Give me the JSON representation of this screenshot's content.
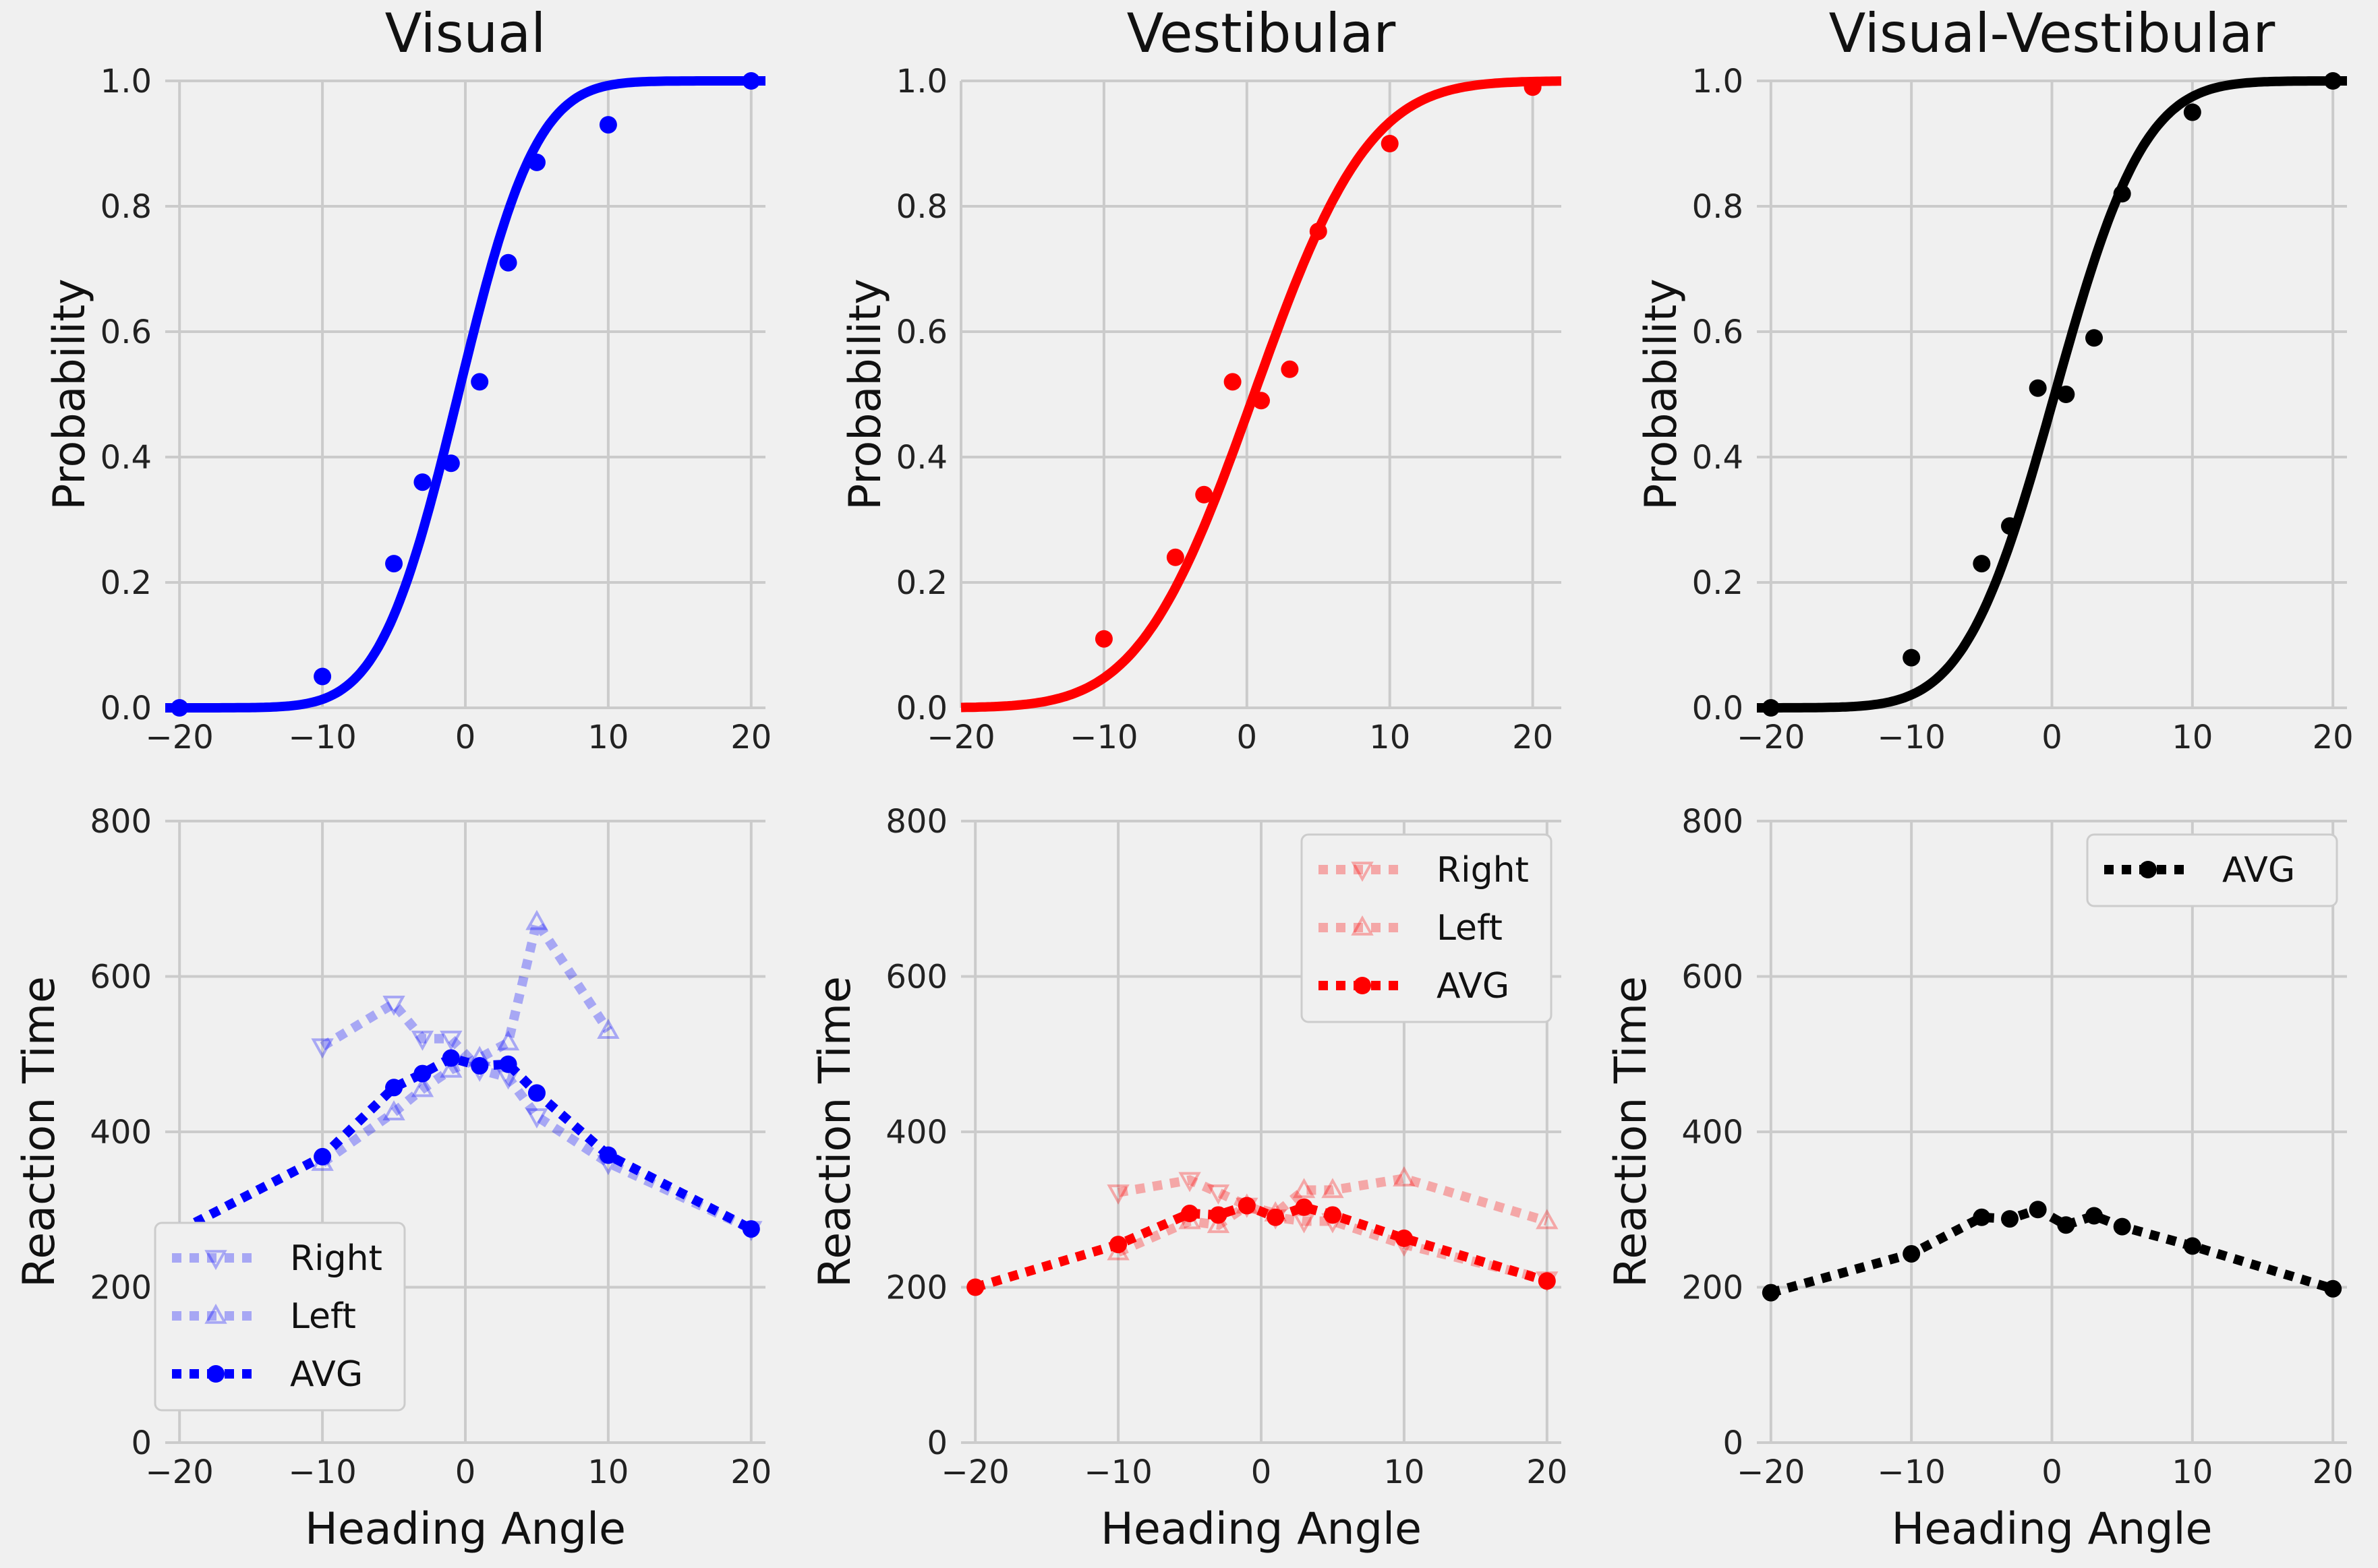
{
  "chart_data": [
    {
      "type": "scatter",
      "title": "Visual",
      "xlabel": "",
      "ylabel": "Probability",
      "xlim": [
        -21,
        21
      ],
      "ylim": [
        0,
        1.0
      ],
      "xticks": [
        -20,
        -10,
        0,
        10,
        20
      ],
      "yticks": [
        0.0,
        0.2,
        0.4,
        0.6,
        0.8,
        1.0
      ],
      "grid": true,
      "color": "#0000ff",
      "fit": {
        "mu": -0.5,
        "sigma": 4.3
      },
      "series": [
        {
          "x": [
            -20,
            -10,
            -5,
            -3,
            -1,
            1,
            3,
            5,
            10,
            20
          ],
          "y": [
            0.0,
            0.05,
            0.23,
            0.36,
            0.39,
            0.52,
            0.71,
            0.87,
            0.93,
            1.0
          ]
        }
      ]
    },
    {
      "type": "scatter",
      "title": "Vestibular",
      "xlabel": "",
      "ylabel": "Probability",
      "xlim": [
        -20,
        22
      ],
      "ylim": [
        0,
        1.0
      ],
      "xticks": [
        -20,
        -10,
        0,
        10,
        20
      ],
      "yticks": [
        0.0,
        0.2,
        0.4,
        0.6,
        0.8,
        1.0
      ],
      "grid": true,
      "color": "#ff0000",
      "fit": {
        "mu": 0.5,
        "sigma": 6.3
      },
      "series": [
        {
          "x": [
            -10,
            -5,
            -3,
            -1,
            1,
            3,
            5,
            10,
            20
          ],
          "y": [
            0.11,
            0.24,
            0.34,
            0.52,
            0.49,
            0.54,
            0.76,
            0.9,
            0.99
          ]
        }
      ]
    },
    {
      "type": "scatter",
      "title": "Visual-Vestibular",
      "xlabel": "",
      "ylabel": "Probability",
      "xlim": [
        -21,
        21
      ],
      "ylim": [
        0,
        1.0
      ],
      "xticks": [
        -20,
        -10,
        0,
        10,
        20
      ],
      "yticks": [
        0.0,
        0.2,
        0.4,
        0.6,
        0.8,
        1.0
      ],
      "grid": true,
      "color": "#000000",
      "fit": {
        "mu": 0.2,
        "sigma": 5.0
      },
      "series": [
        {
          "x": [
            -20,
            -10,
            -5,
            -3,
            -1,
            1,
            3,
            5,
            10,
            20
          ],
          "y": [
            0.0,
            0.08,
            0.23,
            0.29,
            0.51,
            0.5,
            0.59,
            0.82,
            0.95,
            1.0
          ]
        }
      ]
    },
    {
      "type": "line",
      "title": "",
      "xlabel": "Heading Angle",
      "ylabel": "Reaction Time",
      "xlim": [
        -21,
        21
      ],
      "ylim": [
        0,
        800
      ],
      "xticks": [
        -20,
        -10,
        0,
        10,
        20
      ],
      "yticks": [
        0,
        200,
        400,
        600,
        800
      ],
      "grid": true,
      "color": "#0000ff",
      "legend": "lower-left",
      "series": [
        {
          "name": "Right",
          "marker": "triangle-down",
          "faded": true,
          "x": [
            -10,
            -5,
            -3,
            -1,
            1,
            3,
            5,
            10,
            20
          ],
          "y": [
            510,
            565,
            520,
            520,
            480,
            470,
            420,
            360,
            275
          ]
        },
        {
          "name": "Left",
          "marker": "triangle-up",
          "faded": true,
          "x": [
            -10,
            -5,
            -3,
            -1,
            1,
            3,
            5,
            10
          ],
          "y": [
            360,
            425,
            455,
            480,
            495,
            515,
            670,
            530
          ]
        },
        {
          "name": "AVG",
          "marker": "circle",
          "faded": false,
          "x": [
            -20,
            -10,
            -5,
            -3,
            -1,
            1,
            3,
            5,
            10,
            20
          ],
          "y": [
            273,
            368,
            457,
            475,
            495,
            485,
            487,
            450,
            370,
            275
          ]
        }
      ]
    },
    {
      "type": "line",
      "title": "",
      "xlabel": "Heading Angle",
      "ylabel": "Reaction Time",
      "xlim": [
        -21,
        21
      ],
      "ylim": [
        0,
        800
      ],
      "xticks": [
        -20,
        -10,
        0,
        10,
        20
      ],
      "yticks": [
        0,
        200,
        400,
        600,
        800
      ],
      "grid": true,
      "color": "#ff0000",
      "legend": "top-right",
      "series": [
        {
          "name": "Right",
          "marker": "triangle-down",
          "faded": true,
          "x": [
            -10,
            -5,
            -3,
            -1,
            1,
            3,
            5,
            10,
            20
          ],
          "y": [
            322,
            338,
            322,
            305,
            290,
            285,
            285,
            255,
            210
          ]
        },
        {
          "name": "Left",
          "marker": "triangle-up",
          "faded": true,
          "x": [
            -10,
            -5,
            -3,
            -1,
            1,
            3,
            5,
            10,
            20
          ],
          "y": [
            245,
            285,
            280,
            305,
            295,
            325,
            325,
            340,
            285
          ]
        },
        {
          "name": "AVG",
          "marker": "circle",
          "faded": false,
          "x": [
            -20,
            -10,
            -5,
            -3,
            -1,
            1,
            3,
            5,
            10,
            20
          ],
          "y": [
            200,
            255,
            295,
            293,
            305,
            290,
            303,
            293,
            263,
            208
          ]
        }
      ]
    },
    {
      "type": "line",
      "title": "",
      "xlabel": "Heading Angle",
      "ylabel": "Reaction Time",
      "xlim": [
        -21,
        21
      ],
      "ylim": [
        0,
        800
      ],
      "xticks": [
        -20,
        -10,
        0,
        10,
        20
      ],
      "yticks": [
        0,
        200,
        400,
        600,
        800
      ],
      "grid": true,
      "color": "#000000",
      "legend": "top-right",
      "series": [
        {
          "name": "AVG",
          "marker": "circle",
          "faded": false,
          "x": [
            -20,
            -10,
            -5,
            -3,
            -1,
            1,
            3,
            5,
            10,
            20
          ],
          "y": [
            193,
            243,
            290,
            288,
            300,
            280,
            292,
            278,
            253,
            198
          ]
        }
      ]
    }
  ]
}
